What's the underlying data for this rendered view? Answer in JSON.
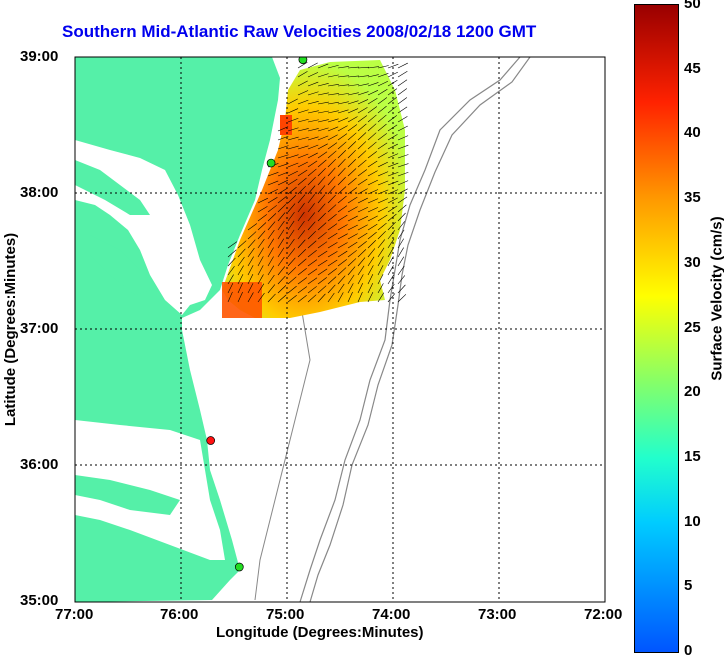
{
  "title": "Southern Mid-Atlantic Raw Velocities 2008/02/18 1200 GMT",
  "xlabel": "Longitude (Degrees:Minutes)",
  "ylabel": "Latitude (Degrees:Minutes)",
  "colorbar": {
    "label": "Surface Velocity (cm/s)",
    "min": 0,
    "max": 50,
    "ticks": [
      "0",
      "5",
      "10",
      "15",
      "20",
      "25",
      "30",
      "35",
      "40",
      "45",
      "50"
    ]
  },
  "x_ticks": [
    "77:00",
    "76:00",
    "75:00",
    "74:00",
    "73:00",
    "72:00"
  ],
  "y_ticks": [
    "39:00",
    "38:00",
    "37:00",
    "36:00",
    "35:00"
  ],
  "colors": {
    "land": "#55f0a8",
    "title": "#0000ee",
    "station_green": "#22dd22",
    "station_red": "#ff1111"
  },
  "stations": [
    {
      "lon": -74.85,
      "lat": 38.98,
      "status": "green"
    },
    {
      "lon": -75.15,
      "lat": 38.22,
      "status": "green"
    },
    {
      "lon": -75.72,
      "lat": 36.18,
      "status": "red"
    },
    {
      "lon": -75.45,
      "lat": 35.25,
      "status": "green"
    }
  ]
}
